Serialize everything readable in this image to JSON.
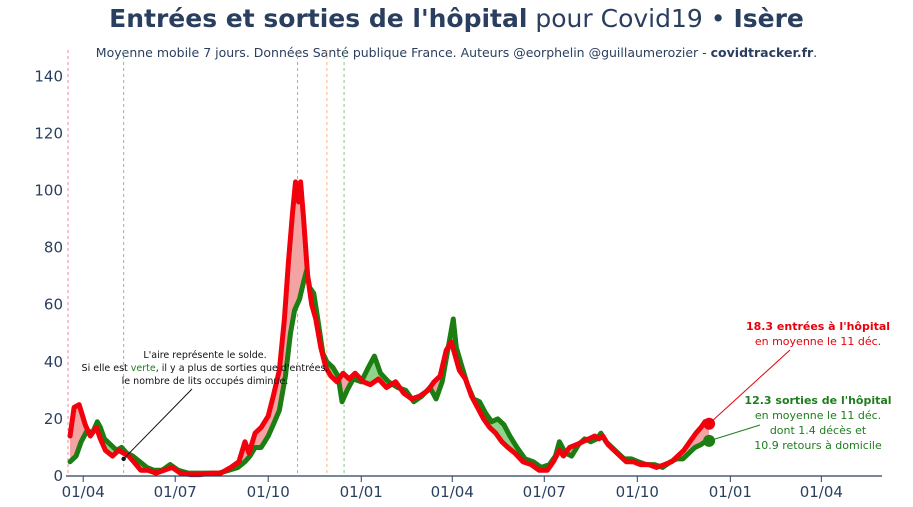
{
  "title": {
    "bold_part": "Entrées et sorties de l'hôpital",
    "normal_part": " pour Covid19 • ",
    "region": "Isère"
  },
  "subtitle": {
    "text": "Moyenne mobile 7 jours. Données Santé publique France. Auteurs @eorphelin @guillaumerozier - ",
    "site": "covidtracker.fr",
    "end": "."
  },
  "annotations": {
    "area_note": [
      "L'aire représente le solde.",
      "Si elle est ",
      "verte",
      ", il y a plus de sorties que d'entrées,",
      "le nombre de lits occupés diminue."
    ],
    "entries_bold": "18.3 entrées à l'hôpital",
    "entries_line2": "en moyenne le 11 déc.",
    "exits_bold": "12.3 sorties de l'hôpital",
    "exits_line2": "en moyenne le 11 déc.",
    "exits_line3": "dont 1.4 décès et",
    "exits_line4": "10.9 retours à domicile"
  },
  "colors": {
    "entries": "#f2000c",
    "exits": "#1b7d12",
    "fill_positive": "#f4a3a3",
    "fill_negative": "#8fd48a",
    "vline_red": "#f28b9a",
    "vline_green": "#86c48a",
    "vline_orange": "#f7b48a"
  },
  "chart_data": {
    "type": "line",
    "title": "Entrées et sorties de l'hôpital pour Covid19 • Isère",
    "xlabel": "",
    "ylabel": "",
    "ylim": [
      0,
      145
    ],
    "xlim": [
      "2020-03-15",
      "2022-05-31"
    ],
    "yticks": [
      0,
      20,
      40,
      60,
      80,
      100,
      120,
      140
    ],
    "xticks": [
      {
        "date": "2020-04-01",
        "label": "01/04"
      },
      {
        "date": "2020-07-01",
        "label": "01/07"
      },
      {
        "date": "2020-10-01",
        "label": "01/10"
      },
      {
        "date": "2021-01-01",
        "label": "01/01"
      },
      {
        "date": "2021-04-01",
        "label": "01/04"
      },
      {
        "date": "2021-07-01",
        "label": "01/07"
      },
      {
        "date": "2021-10-01",
        "label": "01/10"
      },
      {
        "date": "2022-01-01",
        "label": "01/01"
      },
      {
        "date": "2022-04-01",
        "label": "01/04"
      }
    ],
    "vlines": [
      {
        "date": "2020-03-17",
        "color": "red"
      },
      {
        "date": "2020-05-11",
        "color": "green"
      },
      {
        "date": "2020-10-30",
        "color": "red"
      },
      {
        "date": "2020-11-28",
        "color": "orange"
      },
      {
        "date": "2020-12-15",
        "color": "green"
      }
    ],
    "series": [
      {
        "name": "entrées à l'hôpital",
        "color": "#f2000c",
        "points": [
          [
            "2020-03-19",
            14
          ],
          [
            "2020-03-23",
            24
          ],
          [
            "2020-03-28",
            25
          ],
          [
            "2020-04-03",
            18
          ],
          [
            "2020-04-08",
            14
          ],
          [
            "2020-04-14",
            17
          ],
          [
            "2020-04-18",
            13
          ],
          [
            "2020-04-23",
            9
          ],
          [
            "2020-04-30",
            7
          ],
          [
            "2020-05-06",
            9
          ],
          [
            "2020-05-11",
            8
          ],
          [
            "2020-05-16",
            7
          ],
          [
            "2020-05-21",
            5
          ],
          [
            "2020-05-28",
            2
          ],
          [
            "2020-06-04",
            2
          ],
          [
            "2020-06-12",
            1
          ],
          [
            "2020-06-20",
            2
          ],
          [
            "2020-06-28",
            3
          ],
          [
            "2020-07-06",
            1
          ],
          [
            "2020-07-16",
            0.5
          ],
          [
            "2020-07-26",
            0.5
          ],
          [
            "2020-08-05",
            1
          ],
          [
            "2020-08-15",
            1
          ],
          [
            "2020-08-25",
            3
          ],
          [
            "2020-09-02",
            5
          ],
          [
            "2020-09-08",
            12
          ],
          [
            "2020-09-12",
            8
          ],
          [
            "2020-09-18",
            15
          ],
          [
            "2020-09-24",
            17
          ],
          [
            "2020-10-01",
            21
          ],
          [
            "2020-10-06",
            28
          ],
          [
            "2020-10-12",
            37
          ],
          [
            "2020-10-17",
            55
          ],
          [
            "2020-10-21",
            75
          ],
          [
            "2020-10-25",
            92
          ],
          [
            "2020-10-28",
            103
          ],
          [
            "2020-10-31",
            96
          ],
          [
            "2020-11-02",
            103
          ],
          [
            "2020-11-05",
            90
          ],
          [
            "2020-11-09",
            70
          ],
          [
            "2020-11-13",
            60
          ],
          [
            "2020-11-17",
            55
          ],
          [
            "2020-11-22",
            45
          ],
          [
            "2020-11-27",
            38
          ],
          [
            "2020-12-02",
            35
          ],
          [
            "2020-12-08",
            33
          ],
          [
            "2020-12-14",
            36
          ],
          [
            "2020-12-20",
            34
          ],
          [
            "2020-12-26",
            36
          ],
          [
            "2021-01-03",
            33
          ],
          [
            "2021-01-10",
            32
          ],
          [
            "2021-01-18",
            34
          ],
          [
            "2021-01-26",
            31
          ],
          [
            "2021-02-04",
            33
          ],
          [
            "2021-02-12",
            29
          ],
          [
            "2021-02-20",
            27
          ],
          [
            "2021-02-28",
            28
          ],
          [
            "2021-03-08",
            30
          ],
          [
            "2021-03-14",
            33
          ],
          [
            "2021-03-20",
            35
          ],
          [
            "2021-03-26",
            44
          ],
          [
            "2021-03-31",
            47
          ],
          [
            "2021-04-04",
            42
          ],
          [
            "2021-04-08",
            37
          ],
          [
            "2021-04-14",
            34
          ],
          [
            "2021-04-20",
            28
          ],
          [
            "2021-04-26",
            24
          ],
          [
            "2021-05-02",
            20
          ],
          [
            "2021-05-08",
            17
          ],
          [
            "2021-05-14",
            15
          ],
          [
            "2021-05-20",
            12
          ],
          [
            "2021-05-26",
            10
          ],
          [
            "2021-06-02",
            8
          ],
          [
            "2021-06-10",
            5
          ],
          [
            "2021-06-18",
            4
          ],
          [
            "2021-06-26",
            2
          ],
          [
            "2021-07-04",
            2
          ],
          [
            "2021-07-10",
            5
          ],
          [
            "2021-07-16",
            9
          ],
          [
            "2021-07-20",
            7
          ],
          [
            "2021-07-26",
            10
          ],
          [
            "2021-08-02",
            11
          ],
          [
            "2021-08-08",
            12
          ],
          [
            "2021-08-14",
            13
          ],
          [
            "2021-08-20",
            14
          ],
          [
            "2021-08-24",
            13
          ],
          [
            "2021-08-28",
            14
          ],
          [
            "2021-09-02",
            11
          ],
          [
            "2021-09-08",
            9
          ],
          [
            "2021-09-14",
            7
          ],
          [
            "2021-09-20",
            5
          ],
          [
            "2021-09-27",
            5
          ],
          [
            "2021-10-04",
            4
          ],
          [
            "2021-10-12",
            4
          ],
          [
            "2021-10-20",
            3
          ],
          [
            "2021-10-28",
            4
          ],
          [
            "2021-11-04",
            5
          ],
          [
            "2021-11-10",
            7
          ],
          [
            "2021-11-16",
            9
          ],
          [
            "2021-11-22",
            12
          ],
          [
            "2021-11-28",
            15
          ],
          [
            "2021-12-03",
            17
          ],
          [
            "2021-12-07",
            19
          ],
          [
            "2021-12-11",
            18.3
          ]
        ]
      },
      {
        "name": "sorties de l'hôpital",
        "color": "#1b7d12",
        "points": [
          [
            "2020-03-19",
            5
          ],
          [
            "2020-03-25",
            7
          ],
          [
            "2020-03-30",
            12
          ],
          [
            "2020-04-05",
            16
          ],
          [
            "2020-04-10",
            15
          ],
          [
            "2020-04-15",
            19
          ],
          [
            "2020-04-18",
            17
          ],
          [
            "2020-04-22",
            13
          ],
          [
            "2020-04-28",
            11
          ],
          [
            "2020-05-04",
            9
          ],
          [
            "2020-05-09",
            10
          ],
          [
            "2020-05-14",
            8
          ],
          [
            "2020-05-20",
            7
          ],
          [
            "2020-05-27",
            5
          ],
          [
            "2020-06-03",
            3
          ],
          [
            "2020-06-10",
            2
          ],
          [
            "2020-06-18",
            2
          ],
          [
            "2020-06-26",
            4
          ],
          [
            "2020-07-04",
            2
          ],
          [
            "2020-07-14",
            1
          ],
          [
            "2020-07-24",
            1
          ],
          [
            "2020-08-03",
            1
          ],
          [
            "2020-08-13",
            1
          ],
          [
            "2020-08-23",
            2
          ],
          [
            "2020-09-01",
            3
          ],
          [
            "2020-09-08",
            5
          ],
          [
            "2020-09-13",
            7
          ],
          [
            "2020-09-18",
            10
          ],
          [
            "2020-09-24",
            10
          ],
          [
            "2020-10-01",
            14
          ],
          [
            "2020-10-06",
            18
          ],
          [
            "2020-10-12",
            23
          ],
          [
            "2020-10-18",
            35
          ],
          [
            "2020-10-23",
            50
          ],
          [
            "2020-10-27",
            58
          ],
          [
            "2020-11-01",
            62
          ],
          [
            "2020-11-05",
            68
          ],
          [
            "2020-11-08",
            72
          ],
          [
            "2020-11-11",
            66
          ],
          [
            "2020-11-15",
            64
          ],
          [
            "2020-11-19",
            55
          ],
          [
            "2020-11-24",
            43
          ],
          [
            "2020-11-28",
            40
          ],
          [
            "2020-12-04",
            38
          ],
          [
            "2020-12-09",
            35
          ],
          [
            "2020-12-13",
            26
          ],
          [
            "2020-12-18",
            30
          ],
          [
            "2020-12-24",
            34
          ],
          [
            "2021-01-01",
            33
          ],
          [
            "2021-01-08",
            38
          ],
          [
            "2021-01-14",
            42
          ],
          [
            "2021-01-20",
            36
          ],
          [
            "2021-01-28",
            33
          ],
          [
            "2021-02-06",
            31
          ],
          [
            "2021-02-14",
            30
          ],
          [
            "2021-02-22",
            26
          ],
          [
            "2021-03-02",
            28
          ],
          [
            "2021-03-10",
            31
          ],
          [
            "2021-03-16",
            27
          ],
          [
            "2021-03-22",
            33
          ],
          [
            "2021-03-28",
            45
          ],
          [
            "2021-04-02",
            55
          ],
          [
            "2021-04-05",
            45
          ],
          [
            "2021-04-10",
            39
          ],
          [
            "2021-04-16",
            32
          ],
          [
            "2021-04-22",
            27
          ],
          [
            "2021-04-28",
            26
          ],
          [
            "2021-05-04",
            22
          ],
          [
            "2021-05-10",
            19
          ],
          [
            "2021-05-16",
            20
          ],
          [
            "2021-05-22",
            18
          ],
          [
            "2021-05-28",
            14
          ],
          [
            "2021-06-04",
            10
          ],
          [
            "2021-06-12",
            6
          ],
          [
            "2021-06-20",
            5
          ],
          [
            "2021-06-28",
            3
          ],
          [
            "2021-07-06",
            4
          ],
          [
            "2021-07-12",
            7
          ],
          [
            "2021-07-16",
            12
          ],
          [
            "2021-07-22",
            8
          ],
          [
            "2021-07-28",
            7
          ],
          [
            "2021-08-04",
            11
          ],
          [
            "2021-08-10",
            13
          ],
          [
            "2021-08-16",
            12
          ],
          [
            "2021-08-22",
            13
          ],
          [
            "2021-08-26",
            15
          ],
          [
            "2021-08-31",
            12
          ],
          [
            "2021-09-06",
            10
          ],
          [
            "2021-09-12",
            8
          ],
          [
            "2021-09-18",
            6
          ],
          [
            "2021-09-25",
            6
          ],
          [
            "2021-10-02",
            5
          ],
          [
            "2021-10-10",
            4
          ],
          [
            "2021-10-18",
            4
          ],
          [
            "2021-10-26",
            3
          ],
          [
            "2021-11-03",
            5
          ],
          [
            "2021-11-09",
            6
          ],
          [
            "2021-11-15",
            6
          ],
          [
            "2021-11-21",
            8
          ],
          [
            "2021-11-27",
            10
          ],
          [
            "2021-12-03",
            11
          ],
          [
            "2021-12-07",
            12
          ],
          [
            "2021-12-11",
            12.3
          ]
        ]
      }
    ]
  }
}
